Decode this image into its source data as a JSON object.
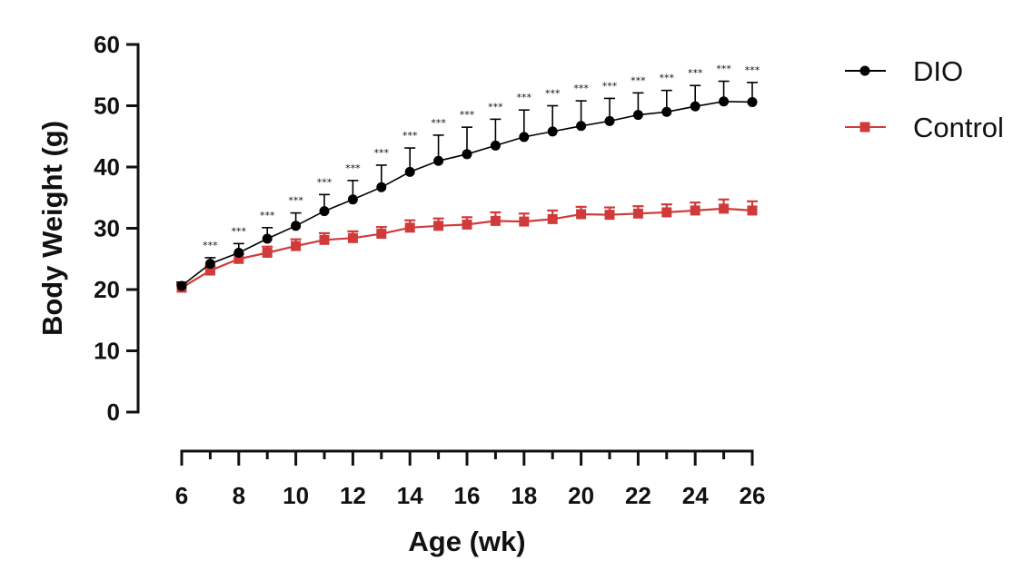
{
  "chart_data": {
    "type": "line",
    "xlabel": "Age (wk)",
    "ylabel": "Body Weight (g)",
    "xlim": [
      6,
      26
    ],
    "ylim": [
      0,
      60
    ],
    "x_ticks": [
      6,
      8,
      10,
      12,
      14,
      16,
      18,
      20,
      22,
      24,
      26
    ],
    "y_ticks": [
      0,
      10,
      20,
      30,
      40,
      50,
      60
    ],
    "x_tick_labels": [
      "6",
      "8",
      "10",
      "12",
      "14",
      "16",
      "18",
      "20",
      "22",
      "24",
      "26"
    ],
    "y_tick_labels": [
      "0",
      "10",
      "20",
      "30",
      "40",
      "50",
      "60"
    ],
    "legend_position": "top-right",
    "x": [
      6,
      7,
      8,
      9,
      10,
      11,
      12,
      13,
      14,
      15,
      16,
      17,
      18,
      19,
      20,
      21,
      22,
      23,
      24,
      25,
      26
    ],
    "series": [
      {
        "name": "DIO",
        "color": "#000000",
        "marker": "circle",
        "values": [
          20.6,
          24.2,
          26.0,
          28.3,
          30.4,
          32.8,
          34.7,
          36.7,
          39.2,
          41.0,
          42.1,
          43.5,
          44.9,
          45.8,
          46.7,
          47.5,
          48.5,
          49.0,
          49.9,
          50.7,
          50.6
        ],
        "error": [
          0.6,
          1.0,
          1.5,
          1.8,
          2.1,
          2.7,
          3.1,
          3.6,
          3.9,
          4.2,
          4.4,
          4.3,
          4.4,
          4.2,
          4.1,
          3.7,
          3.6,
          3.5,
          3.4,
          3.3,
          3.2
        ]
      },
      {
        "name": "Control",
        "color": "#d03a3a",
        "marker": "square",
        "values": [
          20.3,
          23.1,
          25.0,
          26.0,
          27.1,
          28.1,
          28.4,
          29.1,
          30.1,
          30.4,
          30.6,
          31.2,
          31.1,
          31.5,
          32.3,
          32.2,
          32.4,
          32.6,
          32.9,
          33.2,
          32.9
        ],
        "error": [
          0.5,
          0.7,
          0.8,
          1.0,
          1.1,
          1.1,
          1.1,
          1.1,
          1.2,
          1.2,
          1.2,
          1.4,
          1.3,
          1.4,
          1.2,
          1.2,
          1.2,
          1.3,
          1.3,
          1.5,
          1.5
        ]
      }
    ],
    "annotations": {
      "significance_label": "***",
      "x": [
        7,
        8,
        9,
        10,
        11,
        12,
        13,
        14,
        15,
        16,
        17,
        18,
        19,
        20,
        21,
        22,
        23,
        24,
        25,
        26
      ]
    }
  }
}
